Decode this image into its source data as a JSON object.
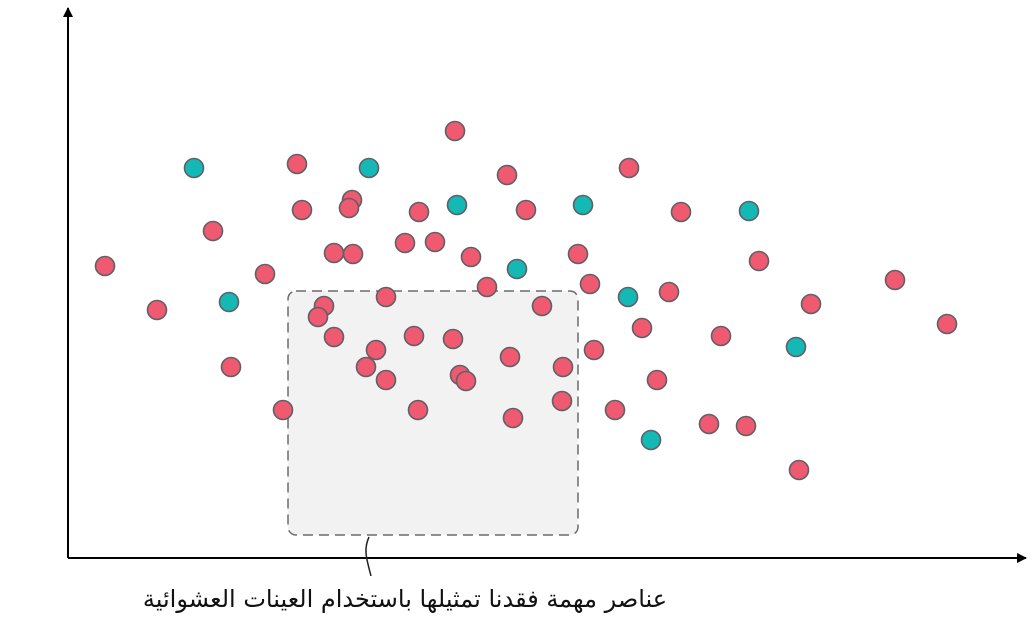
{
  "caption": "عناصر مهمة فقدنا تمثيلها باستخدام العينات العشوائية",
  "colors": {
    "red_point": "#ef5a71",
    "teal_point": "#14b8b5",
    "point_stroke": "#5f5f66",
    "box_fill": "#f2f2f2",
    "box_stroke": "#6b6b6b",
    "axis": "#000000"
  },
  "points": {
    "teal": [
      [
        194,
        168
      ],
      [
        369,
        168
      ],
      [
        457,
        205
      ],
      [
        583,
        205
      ],
      [
        749,
        211
      ],
      [
        517,
        269
      ],
      [
        229,
        302
      ],
      [
        628,
        297
      ],
      [
        796,
        347
      ],
      [
        651,
        440
      ]
    ],
    "red": [
      [
        455,
        131
      ],
      [
        297,
        164
      ],
      [
        629,
        168
      ],
      [
        507,
        175
      ],
      [
        352,
        200
      ],
      [
        302,
        210
      ],
      [
        349,
        208
      ],
      [
        419,
        212
      ],
      [
        526,
        210
      ],
      [
        681,
        212
      ],
      [
        213,
        231
      ],
      [
        334,
        253
      ],
      [
        353,
        254
      ],
      [
        405,
        243
      ],
      [
        435,
        242
      ],
      [
        471,
        257
      ],
      [
        578,
        254
      ],
      [
        759,
        261
      ],
      [
        105,
        266
      ],
      [
        265,
        274
      ],
      [
        487,
        287
      ],
      [
        590,
        284
      ],
      [
        669,
        292
      ],
      [
        386,
        297
      ],
      [
        324,
        306
      ],
      [
        542,
        306
      ],
      [
        811,
        304
      ],
      [
        895,
        280
      ],
      [
        157,
        310
      ],
      [
        318,
        317
      ],
      [
        334,
        337
      ],
      [
        414,
        336
      ],
      [
        453,
        339
      ],
      [
        642,
        328
      ],
      [
        721,
        336
      ],
      [
        947,
        324
      ],
      [
        376,
        350
      ],
      [
        510,
        357
      ],
      [
        594,
        350
      ],
      [
        231,
        367
      ],
      [
        366,
        367
      ],
      [
        460,
        375
      ],
      [
        386,
        380
      ],
      [
        466,
        381
      ],
      [
        563,
        367
      ],
      [
        657,
        380
      ],
      [
        562,
        401
      ],
      [
        283,
        410
      ],
      [
        418,
        410
      ],
      [
        615,
        410
      ],
      [
        513,
        418
      ],
      [
        709,
        424
      ],
      [
        746,
        426
      ],
      [
        799,
        470
      ]
    ]
  }
}
